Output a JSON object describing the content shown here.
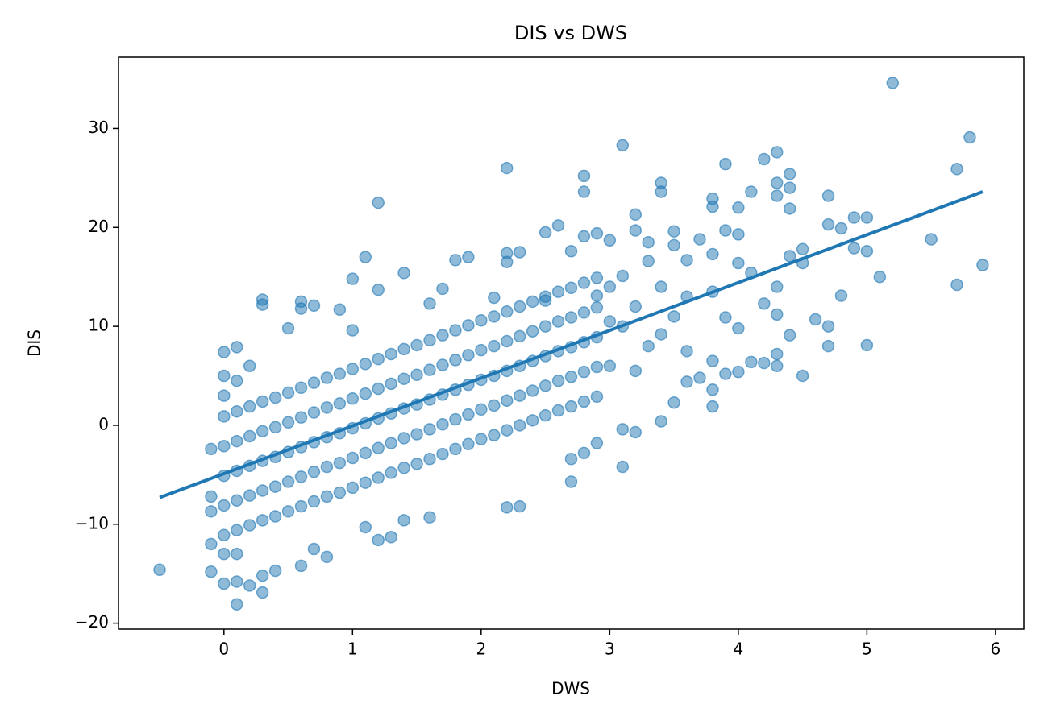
{
  "chart_data": {
    "type": "scatter",
    "title": "DIS vs DWS",
    "x_label": "DWS",
    "y_label": "DIS",
    "xlim": [
      -0.82,
      6.22
    ],
    "ylim": [
      -20.6,
      37.2
    ],
    "xticks": [
      0,
      1,
      2,
      3,
      4,
      5,
      6
    ],
    "yticks": [
      {
        "value": -20,
        "label": "−20"
      },
      {
        "value": -10,
        "label": "−10"
      },
      0,
      10,
      20,
      30
    ],
    "grid": false,
    "series": [
      {
        "color": "#1f77b4",
        "x": [
          -0.5,
          5.2,
          5.8,
          3.1,
          5.7,
          2.2,
          2.8,
          2.8,
          1.2,
          3.4,
          3.4,
          3.9,
          4.2,
          4.3,
          4.3,
          4.3,
          4.4,
          4.4,
          4.4,
          4.1,
          4.0,
          3.8,
          3.8,
          4.7,
          4.7,
          4.8,
          4.9,
          5.0,
          4.9,
          5.0,
          5.1,
          5.5,
          5.9,
          5.7,
          4.8,
          4.6,
          4.7,
          4.7,
          5.0,
          4.5,
          4.5,
          4.5,
          4.4,
          4.4,
          4.3,
          4.3,
          4.3,
          4.3,
          4.2,
          4.2,
          4.1,
          4.1,
          4.0,
          4.0,
          4.0,
          3.9,
          3.9,
          3.8,
          3.8,
          3.7,
          3.6,
          3.5,
          3.4,
          3.2,
          3.1,
          3.1,
          2.9,
          2.8,
          2.7,
          2.7,
          2.3,
          2.2,
          1.6,
          1.4,
          1.3,
          1.2,
          0.1,
          0.3,
          0.0,
          -0.1,
          0.2,
          0.1,
          0.3,
          0.4,
          0.6,
          0.8,
          0.7,
          1.1,
          -0.1,
          -0.1,
          -0.1,
          -0.1,
          0.0,
          0.1,
          0.3,
          0.3,
          0.6,
          0.7,
          0.6,
          0.9,
          1.0,
          1.1,
          1.2,
          1.4,
          1.7,
          1.8,
          1.9,
          2.2,
          2.2,
          2.3,
          2.5,
          2.6,
          2.7,
          2.8,
          2.9,
          3.0,
          3.2,
          3.2,
          3.3,
          3.5,
          3.5,
          3.6,
          3.7,
          3.8,
          3.9,
          4.0,
          3.3,
          3.1,
          3.0,
          2.9,
          2.5,
          2.1,
          1.6,
          1.0,
          0.5,
          0.2,
          0.0,
          0.0,
          0.0,
          0.0,
          0.0,
          0.1,
          0.1,
          0.1,
          0.1,
          0.1,
          0.2,
          0.2,
          0.2,
          0.2,
          0.2,
          0.3,
          0.3,
          0.3,
          0.3,
          0.3,
          0.4,
          0.4,
          0.4,
          0.4,
          0.4,
          0.5,
          0.5,
          0.5,
          0.5,
          0.5,
          0.6,
          0.6,
          0.6,
          0.6,
          0.6,
          0.7,
          0.7,
          0.7,
          0.7,
          0.7,
          0.8,
          0.8,
          0.8,
          0.8,
          0.8,
          0.9,
          0.9,
          0.9,
          0.9,
          0.9,
          1.0,
          1.0,
          1.0,
          1.0,
          1.0,
          1.1,
          1.1,
          1.1,
          1.1,
          1.1,
          1.2,
          1.2,
          1.2,
          1.2,
          1.2,
          1.3,
          1.3,
          1.3,
          1.3,
          1.3,
          1.4,
          1.4,
          1.4,
          1.4,
          1.4,
          1.5,
          1.5,
          1.5,
          1.5,
          1.5,
          1.6,
          1.6,
          1.6,
          1.6,
          1.6,
          1.7,
          1.7,
          1.7,
          1.7,
          1.7,
          1.8,
          1.8,
          1.8,
          1.8,
          1.8,
          1.9,
          1.9,
          1.9,
          1.9,
          1.9,
          2.0,
          2.0,
          2.0,
          2.0,
          2.0,
          2.1,
          2.1,
          2.1,
          2.1,
          2.1,
          2.2,
          2.2,
          2.2,
          2.2,
          2.2,
          2.3,
          2.3,
          2.3,
          2.3,
          2.3,
          2.4,
          2.4,
          2.4,
          2.4,
          2.4,
          2.5,
          2.5,
          2.5,
          2.5,
          2.5,
          2.6,
          2.6,
          2.6,
          2.6,
          2.6,
          2.7,
          2.7,
          2.7,
          2.7,
          2.7,
          2.8,
          2.8,
          2.8,
          2.8,
          2.8,
          2.9,
          2.9,
          2.9,
          2.9,
          2.9,
          0.0,
          0.0,
          0.0,
          0.1,
          0.1,
          3.0,
          3.0,
          3.2,
          3.2,
          3.4,
          3.4,
          3.6,
          3.6,
          3.8,
          3.8,
          3.1,
          3.3,
          3.5
        ],
        "values": [
          -14.6,
          34.6,
          29.1,
          28.3,
          25.9,
          26.0,
          25.2,
          23.6,
          22.5,
          24.5,
          23.6,
          26.4,
          26.9,
          27.6,
          24.5,
          23.2,
          25.4,
          24.0,
          21.9,
          23.6,
          22.0,
          22.9,
          22.1,
          23.2,
          20.3,
          19.9,
          21.0,
          21.0,
          17.9,
          17.6,
          15.0,
          18.8,
          16.2,
          14.2,
          13.1,
          10.7,
          10.0,
          8.0,
          8.1,
          5.0,
          17.8,
          16.4,
          17.1,
          9.1,
          14.0,
          11.2,
          7.2,
          6.0,
          12.3,
          6.3,
          6.4,
          15.4,
          16.4,
          9.8,
          5.4,
          5.2,
          10.9,
          1.9,
          3.6,
          4.8,
          4.4,
          2.3,
          0.4,
          -0.7,
          -4.2,
          -0.4,
          -1.8,
          -2.8,
          -5.7,
          -3.4,
          -8.2,
          -8.3,
          -9.3,
          -9.6,
          -11.3,
          -11.6,
          -18.1,
          -16.9,
          -16.0,
          -14.8,
          -16.2,
          -15.8,
          -15.2,
          -14.7,
          -14.2,
          -13.3,
          -12.5,
          -10.3,
          -12.0,
          -8.7,
          -7.2,
          -2.4,
          7.4,
          7.9,
          12.7,
          12.2,
          12.5,
          12.1,
          11.8,
          11.7,
          14.8,
          17.0,
          13.7,
          15.4,
          13.8,
          16.7,
          17.0,
          17.4,
          16.5,
          17.5,
          19.5,
          20.2,
          17.6,
          19.1,
          19.4,
          18.7,
          21.3,
          19.7,
          18.5,
          19.6,
          18.2,
          16.7,
          18.8,
          17.3,
          19.7,
          19.3,
          16.6,
          15.1,
          14.0,
          13.1,
          12.6,
          12.9,
          12.3,
          9.6,
          9.8,
          6.0,
          -11.1,
          -8.1,
          -5.1,
          -2.1,
          0.9,
          -10.6,
          -7.6,
          -4.6,
          -1.6,
          1.4,
          -10.1,
          -7.1,
          -4.1,
          -1.1,
          1.9,
          -9.6,
          -6.6,
          -3.6,
          -0.6,
          2.4,
          -9.2,
          -6.2,
          -3.2,
          -0.2,
          2.8,
          -8.7,
          -5.7,
          -2.7,
          0.3,
          3.3,
          -8.2,
          -5.2,
          -2.2,
          0.8,
          3.8,
          -7.7,
          -4.7,
          -1.7,
          1.3,
          4.3,
          -7.2,
          -4.2,
          -1.2,
          1.8,
          4.8,
          -6.8,
          -3.8,
          -0.8,
          2.2,
          5.2,
          -6.3,
          -3.3,
          -0.3,
          2.7,
          5.7,
          -5.8,
          -2.8,
          0.2,
          3.2,
          6.2,
          -5.3,
          -2.3,
          0.7,
          3.7,
          6.7,
          -4.8,
          -1.8,
          1.2,
          4.2,
          7.2,
          -4.3,
          -1.3,
          1.7,
          4.7,
          7.7,
          -3.9,
          -0.9,
          2.1,
          5.1,
          8.1,
          -3.4,
          -0.4,
          2.6,
          5.6,
          8.6,
          -2.9,
          0.1,
          3.1,
          6.1,
          9.1,
          -2.4,
          0.6,
          3.6,
          6.6,
          9.6,
          -1.9,
          1.1,
          4.1,
          7.1,
          10.1,
          -1.4,
          1.6,
          4.6,
          7.6,
          10.6,
          -1.0,
          2.0,
          5.0,
          8.0,
          11.0,
          -0.5,
          2.5,
          5.5,
          8.5,
          11.5,
          0.0,
          3.0,
          6.0,
          9.0,
          12.0,
          0.5,
          3.5,
          6.5,
          9.5,
          12.5,
          1.0,
          4.0,
          7.0,
          10.0,
          13.0,
          1.5,
          4.5,
          7.5,
          10.5,
          13.5,
          1.9,
          4.9,
          7.9,
          10.9,
          13.9,
          2.4,
          5.4,
          8.4,
          11.4,
          14.4,
          2.9,
          5.9,
          8.9,
          11.9,
          14.9,
          -13.0,
          3.0,
          5.0,
          -13.0,
          4.5,
          10.5,
          6.0,
          12.0,
          5.5,
          9.2,
          14.0,
          13.0,
          7.5,
          13.5,
          6.5,
          10.0,
          8.0,
          11.0
        ]
      }
    ],
    "trend": {
      "color": "#1f77b4",
      "x": [
        -0.5,
        5.9
      ],
      "values": [
        -7.3,
        23.6
      ]
    }
  }
}
